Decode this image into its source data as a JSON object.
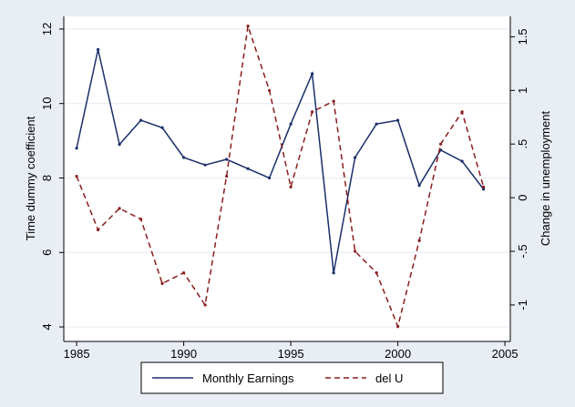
{
  "chart_data": {
    "type": "line",
    "x": [
      1985,
      1986,
      1987,
      1988,
      1989,
      1990,
      1991,
      1992,
      1993,
      1994,
      1995,
      1996,
      1997,
      1998,
      1999,
      2000,
      2001,
      2002,
      2003,
      2004
    ],
    "series": [
      {
        "name": "Monthly Earnings",
        "color": "#1a2f6b",
        "dash": "solid",
        "values": [
          8.8,
          11.45,
          8.9,
          9.55,
          9.35,
          8.55,
          8.35,
          8.5,
          8.25,
          8.0,
          9.45,
          10.8,
          5.45,
          8.55,
          9.45,
          9.55,
          7.8,
          8.75,
          8.45,
          7.7
        ]
      },
      {
        "name": "del U",
        "color": "#8b1c1c",
        "dash": "dashed",
        "axis": "y2",
        "values": [
          0.2,
          -0.3,
          -0.1,
          -0.2,
          -0.8,
          -0.7,
          -1.0,
          0.2,
          1.6,
          1.0,
          0.1,
          0.8,
          0.9,
          -0.5,
          -0.7,
          -1.2,
          -0.4,
          0.5,
          0.8,
          0.1
        ]
      }
    ],
    "ylabel": "Time dummy coefficient",
    "y2label": "Change in unemployment",
    "xlim": [
      1984.4,
      2005.25
    ],
    "xticks": [
      1985,
      1990,
      1995,
      2000,
      2005
    ],
    "ylim": [
      3.61,
      12.34
    ],
    "yticks": [
      4,
      6,
      8,
      10,
      12
    ],
    "y2lim": [
      -1.34,
      1.69
    ],
    "y2ticks": [
      {
        "value": -1,
        "label": "-1"
      },
      {
        "value": -0.5,
        "label": "-.5"
      },
      0,
      {
        "value": 0.5,
        "label": ".5"
      },
      1,
      {
        "value": 1.5,
        "label": "1.5"
      }
    ],
    "grid": true,
    "legend": "bottom"
  }
}
